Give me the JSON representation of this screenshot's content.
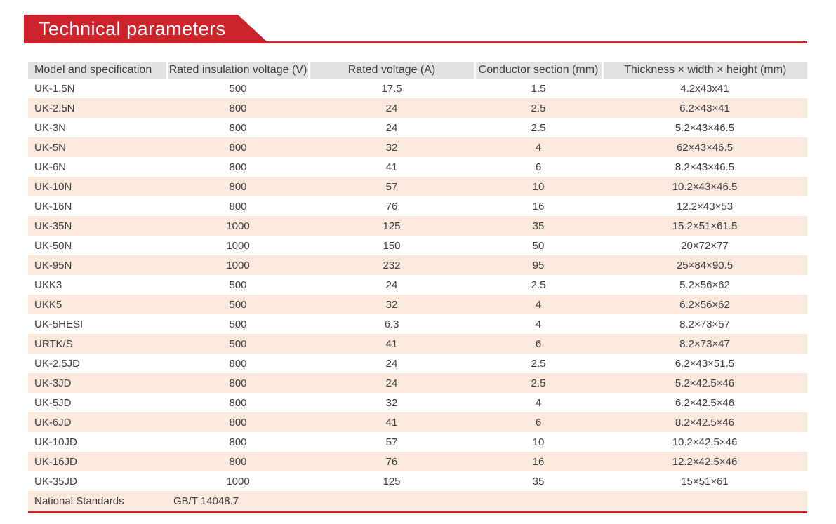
{
  "banner": {
    "title": "Technical parameters"
  },
  "theme": {
    "accent_red": "#cd232d",
    "row_pink": "#fbe9e0",
    "header_gray": "#e2e2e2",
    "text_color": "#3c3c3c"
  },
  "table": {
    "columns": [
      "Model and specification",
      "Rated insulation voltage (V)",
      "Rated voltage (A)",
      "Conductor section (mm)",
      "Thickness × width × height (mm)"
    ],
    "rows": [
      [
        "UK-1.5N",
        "500",
        "17.5",
        "1.5",
        "4.2x43x41"
      ],
      [
        "UK-2.5N",
        "800",
        "24",
        "2.5",
        "6.2×43×41"
      ],
      [
        "UK-3N",
        "800",
        "24",
        "2.5",
        "5.2×43×46.5"
      ],
      [
        "UK-5N",
        "800",
        "32",
        "4",
        "62×43×46.5"
      ],
      [
        "UK-6N",
        "800",
        "41",
        "6",
        "8.2×43×46.5"
      ],
      [
        "UK-10N",
        "800",
        "57",
        "10",
        "10.2×43×46.5"
      ],
      [
        "UK-16N",
        "800",
        "76",
        "16",
        "12.2×43×53"
      ],
      [
        "UK-35N",
        "1000",
        "125",
        "35",
        "15.2×51×61.5"
      ],
      [
        "UK-50N",
        "1000",
        "150",
        "50",
        "20×72×77"
      ],
      [
        "UK-95N",
        "1000",
        "232",
        "95",
        "25×84×90.5"
      ],
      [
        "UKK3",
        "500",
        "24",
        "2.5",
        "5.2×56×62"
      ],
      [
        "UKK5",
        "500",
        "32",
        "4",
        "6.2×56×62"
      ],
      [
        "UK-5HESI",
        "500",
        "6.3",
        "4",
        "8.2×73×57"
      ],
      [
        "URTK/S",
        "500",
        "41",
        "6",
        "8.2×73×47"
      ],
      [
        "UK-2.5JD",
        "800",
        "24",
        "2.5",
        "6.2×43×51.5"
      ],
      [
        "UK-3JD",
        "800",
        "24",
        "2.5",
        "5.2×42.5×46"
      ],
      [
        "UK-5JD",
        "800",
        "32",
        "4",
        "6.2×42.5×46"
      ],
      [
        "UK-6JD",
        "800",
        "41",
        "6",
        "8.2×42.5×46"
      ],
      [
        "UK-10JD",
        "800",
        "57",
        "10",
        "10.2×42.5×46"
      ],
      [
        "UK-16JD",
        "800",
        "76",
        "16",
        "12.2×42.5×46"
      ],
      [
        "UK-35JD",
        "1000",
        "125",
        "35",
        "15×51×61"
      ]
    ],
    "footer": {
      "label": "National Standards",
      "value": "GB/T 14048.7"
    }
  }
}
